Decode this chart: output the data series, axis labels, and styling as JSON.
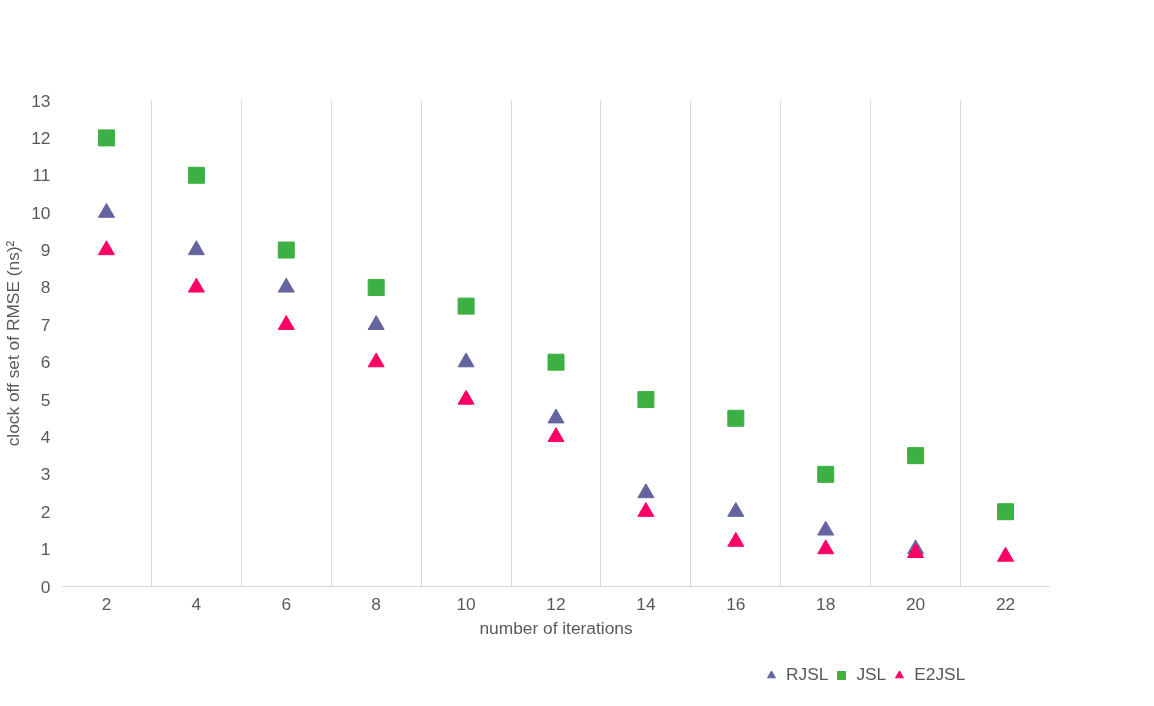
{
  "chart_data": {
    "type": "scatter",
    "xlabel": "number of iterations",
    "ylabel": "clock off set of RMSE (ns)²",
    "categories": [
      "2",
      "4",
      "6",
      "8",
      "10",
      "12",
      "14",
      "16",
      "18",
      "20",
      "22"
    ],
    "series": [
      {
        "name": "RJSL",
        "color": "#6464a0",
        "marker": "triangle",
        "values": [
          10,
          9,
          8,
          7,
          6,
          4.5,
          2.5,
          2,
          1.5,
          1,
          null
        ]
      },
      {
        "name": "JSL",
        "color": "#3cb043",
        "marker": "square",
        "values": [
          12,
          11,
          9,
          8,
          7.5,
          6,
          5,
          4.5,
          3,
          3.5,
          2
        ]
      },
      {
        "name": "E2JSL",
        "color": "#ff0066",
        "marker": "triangle",
        "values": [
          9,
          8,
          7,
          6,
          5,
          4,
          2,
          1.2,
          1,
          0.9,
          0.8
        ]
      }
    ],
    "ylim": [
      0,
      13
    ],
    "yticks": [
      0,
      1,
      2,
      3,
      4,
      5,
      6,
      7,
      8,
      9,
      10,
      11,
      12,
      13
    ],
    "grid": "x",
    "legend": "bottom"
  }
}
